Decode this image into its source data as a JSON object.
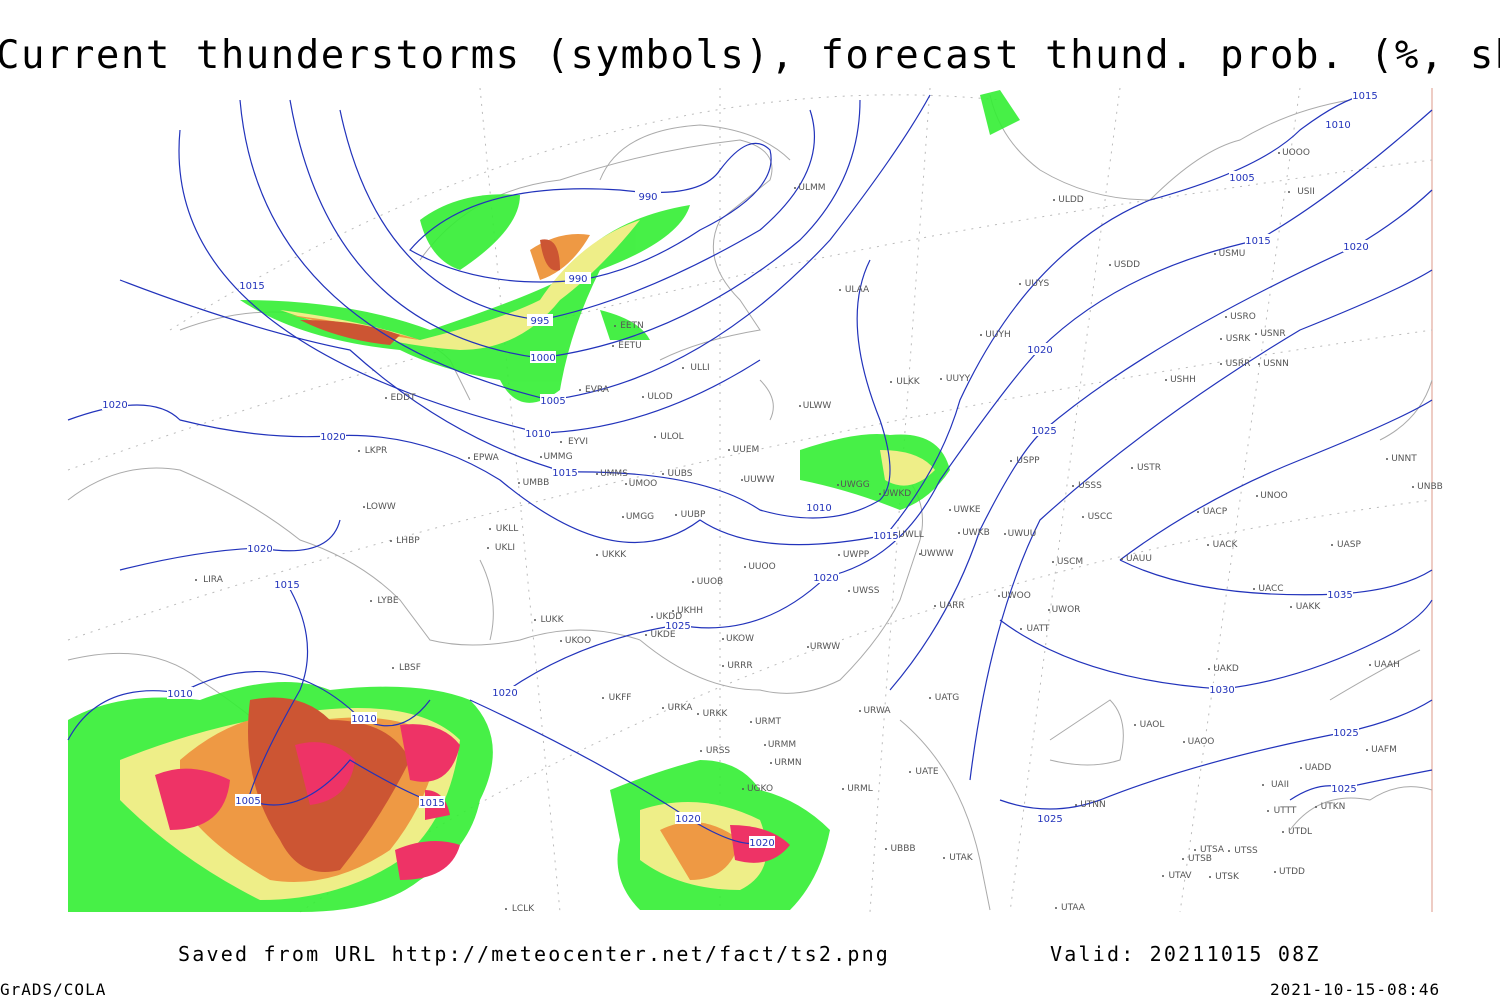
{
  "header": {
    "title": "Current thunderstorms (symbols), forecast thund. prob. (%, shaded)"
  },
  "footer": {
    "source": "Saved from URL http://meteocenter.net/fact/ts2.png",
    "valid": "Valid: 20211015 08Z",
    "software": "GrADS/COLA",
    "timestamp": "2021-10-15-08:46"
  },
  "isobar_labels": [
    990,
    990,
    995,
    1000,
    1005,
    1010,
    1015,
    1015,
    1020,
    1020,
    1020,
    1015,
    1010,
    1010,
    1005,
    1015,
    1020,
    1025,
    1020,
    1020,
    1010,
    1015,
    1020,
    1020,
    1025,
    1005,
    1015,
    1020,
    1010,
    1015,
    1035,
    1030,
    1025,
    1025,
    1025
  ],
  "stations": [
    "ULMM",
    "ULAA",
    "EETN",
    "EETU",
    "EVRA",
    "ULLI",
    "ULOD",
    "ULOL",
    "EDDT",
    "EPWA",
    "EYVI",
    "UMMG",
    "UMMS",
    "UMOO",
    "UUBS",
    "UMBB",
    "LKPR",
    "LOWW",
    "UKLL",
    "UKLI",
    "LHBP",
    "UMGG",
    "UUBP",
    "UKKK",
    "UUOO",
    "UUOB",
    "LIRA",
    "LYBE",
    "LUKK",
    "UKHH",
    "UUEM",
    "UUWW",
    "ULWW",
    "ULKK",
    "UUYY",
    "UUYH",
    "UUYS",
    "USDD",
    "ULDD",
    "USMU",
    "UOOO",
    "USII",
    "USRO",
    "USRK",
    "USNR",
    "USRR",
    "USNN",
    "USHH",
    "USPP",
    "USTR",
    "USSS",
    "USCC",
    "UNOO",
    "UACP",
    "UACK",
    "UASP",
    "UNNT",
    "UNBB",
    "USCM",
    "UAUU",
    "UWGG",
    "UWKD",
    "UWKE",
    "UWKB",
    "UWUU",
    "UWLL",
    "UWPP",
    "UWWW",
    "UWSS",
    "UARR",
    "UWOO",
    "UWOR",
    "UATT",
    "UAKD",
    "UACC",
    "UAKK",
    "UAAH",
    "URWW",
    "UKOW",
    "UKDD",
    "UKDE",
    "UKOO",
    "URRR",
    "UKFF",
    "URKA",
    "URKK",
    "URMT",
    "URMM",
    "URSS",
    "URMN",
    "URML",
    "UATG",
    "URWA",
    "UATE",
    "UAOL",
    "UAOO",
    "UADD",
    "UAFM",
    "UAII",
    "UTTT",
    "UTKN",
    "UTDL",
    "UTSA",
    "UTSS",
    "UTSB",
    "UTDD",
    "UTAV",
    "UTSK",
    "UTAK",
    "UBBB",
    "UTNN",
    "UTAA",
    "UGKO",
    "LBSF",
    "LCLK"
  ]
}
